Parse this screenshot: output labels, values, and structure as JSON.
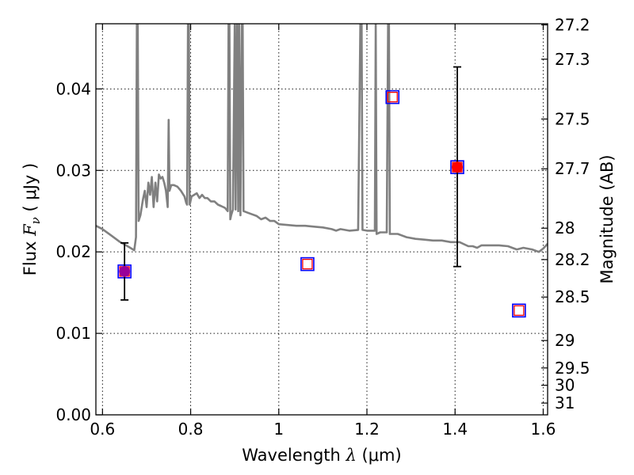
{
  "chart_data": {
    "type": "scatter",
    "xlabel": {
      "prefix": "Wavelength  ",
      "lambda": "λ",
      "unit": " (μm)"
    },
    "ylabel": {
      "prefix": "Flux  ",
      "F": "F",
      "sub": "ν",
      "unit": "  ( μJy )"
    },
    "y2label": "Magnitude (AB)",
    "xlim": [
      0.585,
      1.61
    ],
    "ylim": [
      0.0,
      0.048
    ],
    "x_ticks": [
      {
        "value": 0.6,
        "label": "0.6"
      },
      {
        "value": 0.8,
        "label": "0.8"
      },
      {
        "value": 1.0,
        "label": "1"
      },
      {
        "value": 1.2,
        "label": "1.2"
      },
      {
        "value": 1.4,
        "label": "1.4"
      },
      {
        "value": 1.6,
        "label": "1.6"
      }
    ],
    "y_ticks": [
      {
        "value": 0.0,
        "label": "0.00"
      },
      {
        "value": 0.01,
        "label": "0.01"
      },
      {
        "value": 0.02,
        "label": "0.02"
      },
      {
        "value": 0.03,
        "label": "0.03"
      },
      {
        "value": 0.04,
        "label": "0.04"
      }
    ],
    "mag_ticks": [
      {
        "value": 27.2,
        "label": "27.2"
      },
      {
        "value": 27.3,
        "label": "27.3"
      },
      {
        "value": 27.5,
        "label": "27.5"
      },
      {
        "value": 27.7,
        "label": "27.7"
      },
      {
        "value": 28.0,
        "label": "28"
      },
      {
        "value": 28.2,
        "label": "28.2"
      },
      {
        "value": 28.5,
        "label": "28.5"
      },
      {
        "value": 29.0,
        "label": "29"
      },
      {
        "value": 29.5,
        "label": "29.5"
      },
      {
        "value": 30.0,
        "label": "30"
      },
      {
        "value": 31.0,
        "label": "31"
      }
    ],
    "grid": true,
    "model_spectrum": {
      "color": "#808080",
      "points": [
        [
          0.585,
          0.0232
        ],
        [
          0.6,
          0.0228
        ],
        [
          0.62,
          0.022
        ],
        [
          0.64,
          0.0212
        ],
        [
          0.66,
          0.0206
        ],
        [
          0.672,
          0.0202
        ],
        [
          0.676,
          0.0218
        ],
        [
          0.678,
          0.048
        ],
        [
          0.68,
          0.048
        ],
        [
          0.682,
          0.0238
        ],
        [
          0.686,
          0.0245
        ],
        [
          0.692,
          0.0265
        ],
        [
          0.696,
          0.0275
        ],
        [
          0.7,
          0.0255
        ],
        [
          0.704,
          0.0285
        ],
        [
          0.708,
          0.027
        ],
        [
          0.712,
          0.0292
        ],
        [
          0.716,
          0.0255
        ],
        [
          0.72,
          0.0285
        ],
        [
          0.724,
          0.0262
        ],
        [
          0.728,
          0.0295
        ],
        [
          0.732,
          0.029
        ],
        [
          0.736,
          0.0292
        ],
        [
          0.74,
          0.0285
        ],
        [
          0.744,
          0.0275
        ],
        [
          0.748,
          0.0255
        ],
        [
          0.75,
          0.0362
        ],
        [
          0.752,
          0.0275
        ],
        [
          0.756,
          0.0282
        ],
        [
          0.762,
          0.0282
        ],
        [
          0.77,
          0.028
        ],
        [
          0.778,
          0.0275
        ],
        [
          0.786,
          0.0268
        ],
        [
          0.79,
          0.026
        ],
        [
          0.792,
          0.0258
        ],
        [
          0.794,
          0.048
        ],
        [
          0.796,
          0.048
        ],
        [
          0.798,
          0.0258
        ],
        [
          0.802,
          0.0268
        ],
        [
          0.808,
          0.027
        ],
        [
          0.814,
          0.0272
        ],
        [
          0.82,
          0.0266
        ],
        [
          0.826,
          0.027
        ],
        [
          0.832,
          0.0266
        ],
        [
          0.838,
          0.0266
        ],
        [
          0.846,
          0.0262
        ],
        [
          0.854,
          0.0262
        ],
        [
          0.862,
          0.0258
        ],
        [
          0.87,
          0.0256
        ],
        [
          0.878,
          0.0254
        ],
        [
          0.884,
          0.025
        ],
        [
          0.886,
          0.048
        ],
        [
          0.888,
          0.048
        ],
        [
          0.89,
          0.024
        ],
        [
          0.892,
          0.0245
        ],
        [
          0.896,
          0.0252
        ],
        [
          0.9,
          0.048
        ],
        [
          0.902,
          0.0252
        ],
        [
          0.905,
          0.048
        ],
        [
          0.908,
          0.025
        ],
        [
          0.91,
          0.048
        ],
        [
          0.913,
          0.0245
        ],
        [
          0.916,
          0.048
        ],
        [
          0.918,
          0.048
        ],
        [
          0.92,
          0.025
        ],
        [
          0.93,
          0.0248
        ],
        [
          0.94,
          0.0246
        ],
        [
          0.95,
          0.0244
        ],
        [
          0.96,
          0.024
        ],
        [
          0.97,
          0.0242
        ],
        [
          0.98,
          0.0238
        ],
        [
          0.99,
          0.0238
        ],
        [
          1.0,
          0.0234
        ],
        [
          1.02,
          0.0233
        ],
        [
          1.04,
          0.0232
        ],
        [
          1.06,
          0.0232
        ],
        [
          1.08,
          0.0231
        ],
        [
          1.1,
          0.023
        ],
        [
          1.12,
          0.0228
        ],
        [
          1.13,
          0.0226
        ],
        [
          1.14,
          0.0228
        ],
        [
          1.16,
          0.0226
        ],
        [
          1.18,
          0.0227
        ],
        [
          1.185,
          0.048
        ],
        [
          1.188,
          0.048
        ],
        [
          1.19,
          0.0227
        ],
        [
          1.2,
          0.0226
        ],
        [
          1.215,
          0.0226
        ],
        [
          1.218,
          0.0226
        ],
        [
          1.22,
          0.048
        ],
        [
          1.222,
          0.0222
        ],
        [
          1.23,
          0.0224
        ],
        [
          1.245,
          0.0224
        ],
        [
          1.248,
          0.048
        ],
        [
          1.25,
          0.048
        ],
        [
          1.252,
          0.0222
        ],
        [
          1.27,
          0.0222
        ],
        [
          1.29,
          0.0218
        ],
        [
          1.31,
          0.0216
        ],
        [
          1.33,
          0.0215
        ],
        [
          1.35,
          0.0214
        ],
        [
          1.37,
          0.0214
        ],
        [
          1.39,
          0.0212
        ],
        [
          1.41,
          0.0212
        ],
        [
          1.43,
          0.0207
        ],
        [
          1.44,
          0.0207
        ],
        [
          1.45,
          0.0205
        ],
        [
          1.46,
          0.0208
        ],
        [
          1.48,
          0.0208
        ],
        [
          1.5,
          0.0208
        ],
        [
          1.52,
          0.0207
        ],
        [
          1.54,
          0.0203
        ],
        [
          1.555,
          0.0205
        ],
        [
          1.575,
          0.0203
        ],
        [
          1.59,
          0.02
        ],
        [
          1.6,
          0.0204
        ],
        [
          1.61,
          0.021
        ]
      ]
    },
    "photometry_squares": {
      "edge_color": "#0000ff",
      "inner_color": "#ff0000",
      "points": [
        {
          "x": 0.65,
          "y": 0.0176
        },
        {
          "x": 1.065,
          "y": 0.0185
        },
        {
          "x": 1.258,
          "y": 0.039
        },
        {
          "x": 1.405,
          "y": 0.0304
        },
        {
          "x": 1.545,
          "y": 0.0128
        }
      ]
    },
    "observed_points": {
      "points": [
        {
          "x": 0.65,
          "y": 0.0176,
          "yerr_low": 0.0141,
          "yerr_high": 0.0211,
          "color": "#990099"
        },
        {
          "x": 1.405,
          "y": 0.0304,
          "yerr_low": 0.0182,
          "yerr_high": 0.0427,
          "color": "#ff0000"
        }
      ]
    }
  }
}
